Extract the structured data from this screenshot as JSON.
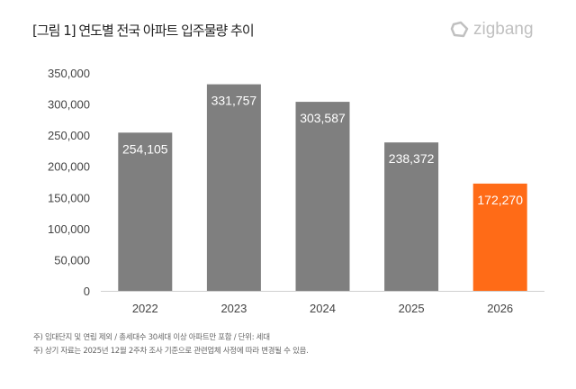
{
  "title": "[그림 1] 연도별 전국 아파트 입주물량 추이",
  "logo": "zigbang",
  "chart_data": {
    "type": "bar",
    "categories": [
      "2022",
      "2023",
      "2024",
      "2025",
      "2026"
    ],
    "values": [
      254105,
      331757,
      303587,
      238372,
      172270
    ],
    "value_labels": [
      "254,105",
      "331,757",
      "303,587",
      "238,372",
      "172,270"
    ],
    "ylim": [
      0,
      350000
    ],
    "yticks": [
      0,
      50000,
      100000,
      150000,
      200000,
      250000,
      300000,
      350000
    ],
    "ytick_labels": [
      "0",
      "50,000",
      "100,000",
      "150,000",
      "200,000",
      "250,000",
      "300,000",
      "350,000"
    ],
    "grid": false,
    "colors": [
      "#7f7f7f",
      "#7f7f7f",
      "#7f7f7f",
      "#7f7f7f",
      "#ff6b17"
    ]
  },
  "notes": [
    "주) 임대단지 및 연립 제외 / 총세대수 30세대 이상 아파트만 포함 / 단위: 세대",
    "주) 상기 자료는 2025년 12월 2주차 조사 기준으로 관련업체 사정에 따라 변경될 수 있음."
  ]
}
